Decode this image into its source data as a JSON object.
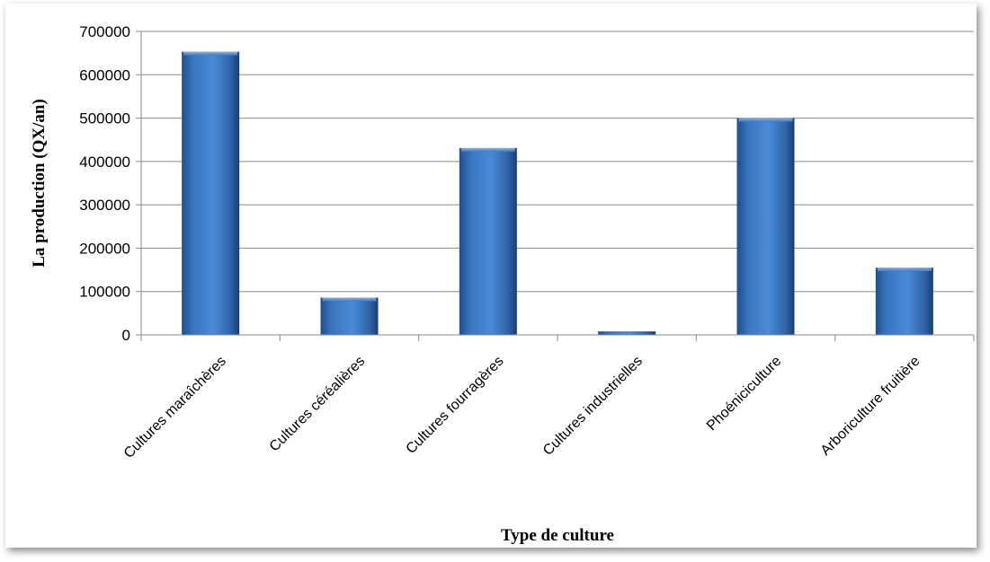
{
  "chart_data": {
    "type": "bar",
    "title": "",
    "xlabel": "Type de culture",
    "ylabel": "La production (QX/an)",
    "ylim": [
      0,
      700000
    ],
    "yticks": [
      "0",
      "100000",
      "200000",
      "300000",
      "400000",
      "500000",
      "600000",
      "700000"
    ],
    "grid": true,
    "legend": "none",
    "bar_color": "#3f7cc4",
    "categories": [
      "Cultures maraîchères",
      "Cultures céréalières",
      "Cultures fourragères",
      "Cultures industrielles",
      "Phoéniciculture",
      "Arboriculture fruitière"
    ],
    "values": [
      653000,
      86000,
      431000,
      8000,
      500000,
      155000
    ]
  }
}
